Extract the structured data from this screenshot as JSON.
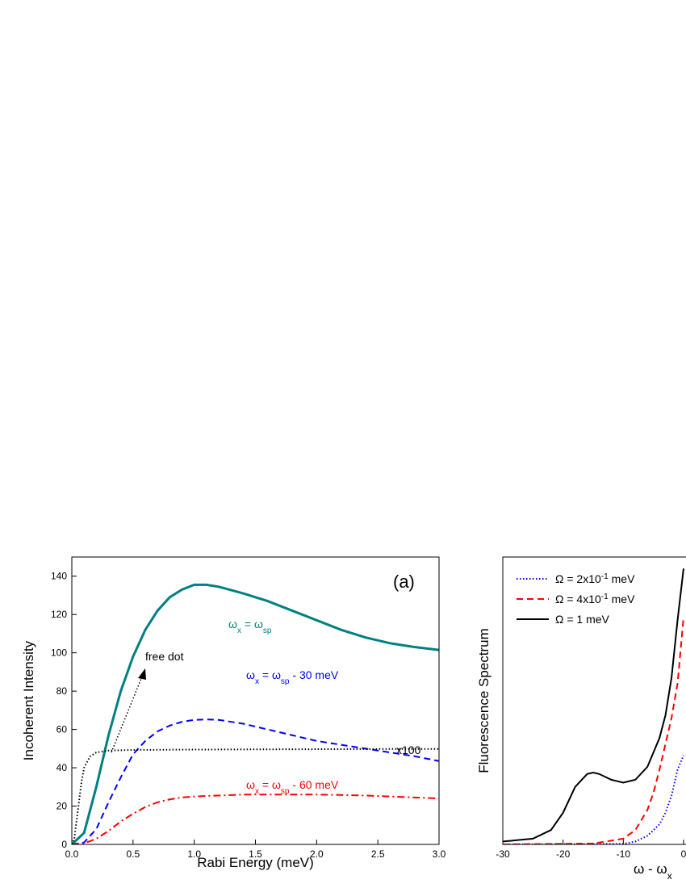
{
  "chart_data": [
    {
      "type": "line",
      "xlabel": "Rabi Energy (meV)",
      "ylabel": "Incoherent Intensity",
      "xlim": [
        0,
        3
      ],
      "ylim": [
        0,
        150
      ],
      "xticks": [
        {
          "value": 0,
          "label": "0.0"
        },
        0.5,
        {
          "value": 1,
          "label": "1.0"
        },
        1.5,
        {
          "value": 2,
          "label": "2.0"
        },
        2.5,
        {
          "value": 3,
          "label": "3.0"
        }
      ],
      "yticks": [
        0,
        20,
        40,
        60,
        80,
        100,
        120,
        140
      ],
      "annotations": [
        "(a)",
        "free dot",
        "x100"
      ],
      "series": [
        {
          "label": [
            {
              "text": "ω"
            },
            {
              "text": "x",
              "sub": true
            },
            {
              "text": " = ω"
            },
            {
              "text": "sp",
              "sub": true
            }
          ],
          "color": "#008080",
          "dash": "solid",
          "x": [
            0,
            0.1,
            0.2,
            0.3,
            0.4,
            0.5,
            0.6,
            0.7,
            0.8,
            0.9,
            1.0,
            1.1,
            1.2,
            1.4,
            1.6,
            1.8,
            2.0,
            2.2,
            2.4,
            2.6,
            2.8,
            3.0
          ],
          "values": [
            0,
            6,
            30,
            57,
            80,
            98,
            112,
            122,
            129,
            133,
            135.5,
            135.5,
            134.5,
            131,
            127,
            122,
            117,
            112,
            108,
            105,
            103,
            101.5
          ]
        },
        {
          "label": [
            {
              "text": "ω"
            },
            {
              "text": "x",
              "sub": true
            },
            {
              "text": " = ω"
            },
            {
              "text": "sp",
              "sub": true
            },
            {
              "text": " - 30 meV"
            }
          ],
          "color": "#0000ff",
          "dash": "dashed",
          "x": [
            0,
            0.1,
            0.2,
            0.3,
            0.4,
            0.5,
            0.6,
            0.7,
            0.8,
            0.9,
            1.0,
            1.1,
            1.2,
            1.4,
            1.6,
            1.8,
            2.0,
            2.2,
            2.4,
            2.6,
            2.8,
            3.0
          ],
          "values": [
            0,
            1,
            8,
            22,
            35,
            47,
            54,
            59,
            62,
            64,
            65,
            65.2,
            65,
            63,
            60,
            57,
            54,
            52,
            50,
            48,
            46,
            43.5
          ]
        },
        {
          "label": [
            {
              "text": "ω"
            },
            {
              "text": "x",
              "sub": true
            },
            {
              "text": " = ω"
            },
            {
              "text": "sp",
              "sub": true
            },
            {
              "text": " - 60 meV"
            }
          ],
          "color": "#ff0000",
          "dash": "dashdot",
          "x": [
            0,
            0.1,
            0.2,
            0.3,
            0.4,
            0.5,
            0.6,
            0.7,
            0.8,
            0.9,
            1.0,
            1.1,
            1.2,
            1.4,
            1.6,
            1.8,
            2.0,
            2.2,
            2.4,
            2.6,
            2.8,
            3.0
          ],
          "values": [
            0,
            0.5,
            3,
            7,
            12,
            16,
            19.5,
            22,
            23.5,
            24.5,
            25,
            25.3,
            25.5,
            26,
            26,
            26,
            26,
            25.8,
            25.5,
            25,
            24.5,
            24
          ]
        },
        {
          "color": "#000000",
          "dash": "dotted",
          "x": [
            0,
            0.02,
            0.05,
            0.08,
            0.1,
            0.15,
            0.2,
            0.3,
            0.5,
            1,
            1.5,
            2,
            2.5,
            3
          ],
          "values": [
            0,
            3,
            18,
            33,
            40,
            46,
            48,
            49,
            49.3,
            49.5,
            49.6,
            49.7,
            49.8,
            49.8
          ]
        }
      ]
    },
    {
      "type": "line",
      "xlabel": [
        {
          "text": "ω  - ω"
        },
        {
          "text": "x",
          "sub": true
        }
      ],
      "ylabel": "Fluorescence Spectrum",
      "xlim": [
        -30,
        30
      ],
      "ylim": [
        0,
        1
      ],
      "xticks": [
        -30,
        -20,
        -10,
        0
      ],
      "legend": "upper left",
      "series": [
        {
          "name": [
            {
              "text": "Ω  = 2x10"
            },
            {
              "text": "-1",
              "sup": true
            },
            {
              "text": " meV"
            }
          ],
          "color": "#0000ff",
          "dash": "dotted",
          "x": [
            -30,
            -10,
            -8,
            -6,
            -4,
            -3,
            -2,
            -1,
            0
          ],
          "values": [
            0,
            0.002,
            0.01,
            0.03,
            0.07,
            0.11,
            0.17,
            0.26,
            0.31
          ]
        },
        {
          "name": [
            {
              "text": "Ω  = 4x10"
            },
            {
              "text": "-1",
              "sup": true
            },
            {
              "text": " meV"
            }
          ],
          "color": "#ff0000",
          "dash": "dashed",
          "x": [
            -30,
            -15,
            -10,
            -8,
            -6,
            -5,
            -4,
            -3,
            -2,
            -1,
            0
          ],
          "values": [
            0,
            0.003,
            0.02,
            0.05,
            0.12,
            0.18,
            0.26,
            0.35,
            0.44,
            0.56,
            0.79
          ]
        },
        {
          "name": [
            {
              "text": "Ω  = 1 meV"
            }
          ],
          "color": "#000000",
          "dash": "solid",
          "x": [
            -30,
            -25,
            -22,
            -20,
            -18,
            -16,
            -15,
            -14,
            -12,
            -10,
            -8,
            -6,
            -4,
            -3,
            -2,
            -1,
            0
          ],
          "values": [
            0.01,
            0.02,
            0.05,
            0.11,
            0.2,
            0.245,
            0.25,
            0.245,
            0.225,
            0.215,
            0.225,
            0.27,
            0.37,
            0.45,
            0.58,
            0.78,
            0.96
          ]
        }
      ]
    }
  ]
}
